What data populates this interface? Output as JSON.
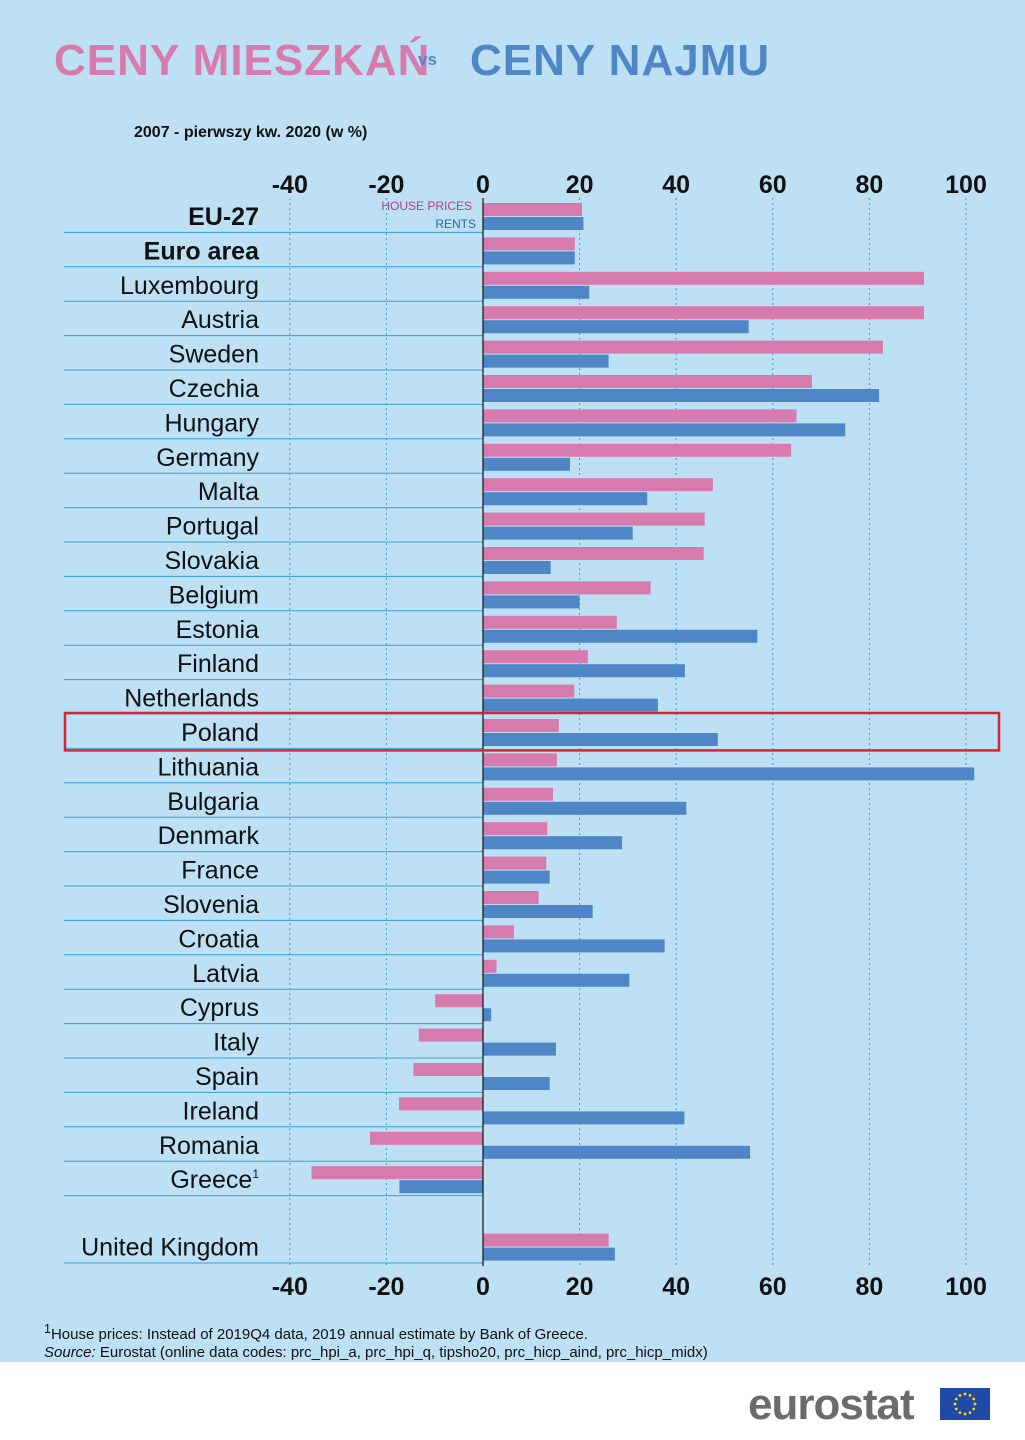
{
  "header": {
    "title_left": "CENY MIESZKAŃ",
    "title_vs": "vs",
    "title_right": "CENY NAJMU",
    "subtitle": "2007 - pierwszy kw. 2020  (w %)"
  },
  "colors": {
    "house_prices": "#d77bae",
    "rents": "#4f86c6",
    "background": "#bde0f5",
    "highlight": "#d7262e"
  },
  "chart_data": {
    "type": "bar",
    "orientation": "horizontal",
    "xlim": [
      -40,
      100
    ],
    "ticks": [
      "-40",
      "-20",
      "0",
      "20",
      "40",
      "60",
      "80",
      "100"
    ],
    "legend": {
      "house_prices": "HOUSE PRICES",
      "rents": "RENTS"
    },
    "highlighted": "Poland",
    "rows": [
      {
        "label": "EU-27",
        "bold": true,
        "house_prices": 20.5,
        "rents": 20.8
      },
      {
        "label": "Euro area",
        "bold": true,
        "house_prices": 19,
        "rents": 19
      },
      {
        "label": "Luxembourg",
        "house_prices": 91.3,
        "rents": 22
      },
      {
        "label": "Austria",
        "house_prices": 91.3,
        "rents": 55
      },
      {
        "label": "Sweden",
        "house_prices": 82.8,
        "rents": 26
      },
      {
        "label": "Czechia",
        "house_prices": 68.1,
        "rents": 82
      },
      {
        "label": "Hungary",
        "house_prices": 64.9,
        "rents": 75
      },
      {
        "label": "Germany",
        "house_prices": 63.8,
        "rents": 18
      },
      {
        "label": "Malta",
        "house_prices": 47.6,
        "rents": 34
      },
      {
        "label": "Portugal",
        "house_prices": 45.9,
        "rents": 31
      },
      {
        "label": "Slovakia",
        "house_prices": 45.7,
        "rents": 14
      },
      {
        "label": "Belgium",
        "house_prices": 34.7,
        "rents": 20
      },
      {
        "label": "Estonia",
        "house_prices": 27.7,
        "rents": 56.8
      },
      {
        "label": "Finland",
        "house_prices": 21.7,
        "rents": 41.8
      },
      {
        "label": "Netherlands",
        "house_prices": 18.9,
        "rents": 36.2
      },
      {
        "label": "Poland",
        "house_prices": 15.7,
        "rents": 48.6
      },
      {
        "label": "Lithuania",
        "house_prices": 15.3,
        "rents": 101.7
      },
      {
        "label": "Bulgaria",
        "house_prices": 14.5,
        "rents": 42.1
      },
      {
        "label": "Denmark",
        "house_prices": 13.3,
        "rents": 28.8
      },
      {
        "label": "France",
        "house_prices": 13.1,
        "rents": 13.8
      },
      {
        "label": "Slovenia",
        "house_prices": 11.5,
        "rents": 22.7
      },
      {
        "label": "Croatia",
        "house_prices": 6.4,
        "rents": 37.6
      },
      {
        "label": "Latvia",
        "house_prices": 2.8,
        "rents": 30.3
      },
      {
        "label": "Cyprus",
        "house_prices": -9.9,
        "rents": 1.7
      },
      {
        "label": "Italy",
        "house_prices": -13.3,
        "rents": 15.1
      },
      {
        "label": "Spain",
        "house_prices": -14.4,
        "rents": 13.8
      },
      {
        "label": "Ireland",
        "house_prices": -17.4,
        "rents": 41.7
      },
      {
        "label": "Romania",
        "house_prices": -23.4,
        "rents": 55.3
      },
      {
        "label": "Greece",
        "superscript": "1",
        "house_prices": -35.5,
        "rents": -17.3
      },
      {
        "label": "United Kingdom",
        "gap_before": true,
        "house_prices": 26,
        "rents": 27.3
      }
    ]
  },
  "footnote": {
    "marker": "1",
    "note": "House prices: Instead of 2019Q4 data, 2019 annual estimate by Bank of Greece.",
    "source_label": "Source:",
    "source_text": " Eurostat (online data codes: prc_hpi_a, prc_hpi_q, tipsho20, prc_hicp_aind, prc_hicp_midx)"
  },
  "logo": {
    "text": "eurostat"
  }
}
